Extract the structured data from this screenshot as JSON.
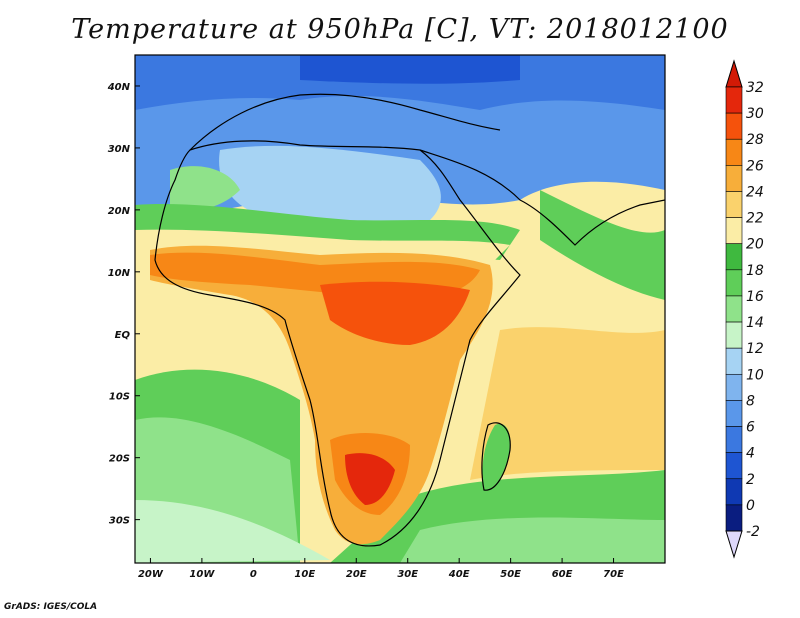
{
  "title": "Temperature at 950hPa [C], VT: 2018012100",
  "credit": "GrADS: IGES/COLA",
  "map": {
    "lon_range": [
      -23,
      80
    ],
    "lat_range": [
      -37,
      45
    ],
    "lon_ticks": [
      {
        "value": -20,
        "label": "20W"
      },
      {
        "value": -10,
        "label": "10W"
      },
      {
        "value": 0,
        "label": "0"
      },
      {
        "value": 10,
        "label": "10E"
      },
      {
        "value": 20,
        "label": "20E"
      },
      {
        "value": 30,
        "label": "30E"
      },
      {
        "value": 40,
        "label": "40E"
      },
      {
        "value": 50,
        "label": "50E"
      },
      {
        "value": 60,
        "label": "60E"
      },
      {
        "value": 70,
        "label": "70E"
      }
    ],
    "lat_ticks": [
      {
        "value": 40,
        "label": "40N"
      },
      {
        "value": 30,
        "label": "30N"
      },
      {
        "value": 20,
        "label": "20N"
      },
      {
        "value": 10,
        "label": "10N"
      },
      {
        "value": 0,
        "label": "EQ"
      },
      {
        "value": -10,
        "label": "10S"
      },
      {
        "value": -20,
        "label": "20S"
      },
      {
        "value": -30,
        "label": "30S"
      }
    ]
  },
  "colorbar": {
    "levels": [
      "32",
      "30",
      "28",
      "26",
      "24",
      "22",
      "20",
      "18",
      "16",
      "14",
      "12",
      "10",
      "8",
      "6",
      "4",
      "2",
      "0",
      "-2"
    ],
    "colors": [
      "#e4270c",
      "#f5520c",
      "#f78716",
      "#f7ae3a",
      "#fad26c",
      "#fbeda6",
      "#3fb93f",
      "#5fce59",
      "#8fe28a",
      "#c7f4c8",
      "#a6d3f3",
      "#7fb4ee",
      "#5a97ea",
      "#3b78e0",
      "#1e55d2",
      "#0f39b3",
      "#0a1d80"
    ],
    "top_arrow_color": "#d31a06",
    "bottom_arrow_color": "#ded8fb"
  },
  "palette": {
    "ocean": "#fbeda6",
    "land": "#f7ae3a",
    "hot": "#e4270c",
    "sahara": "#7fb4ee",
    "north": "#5a97ea",
    "green": "#5fce59",
    "south_ocean": "#8fe28a",
    "coast": "#000000"
  }
}
